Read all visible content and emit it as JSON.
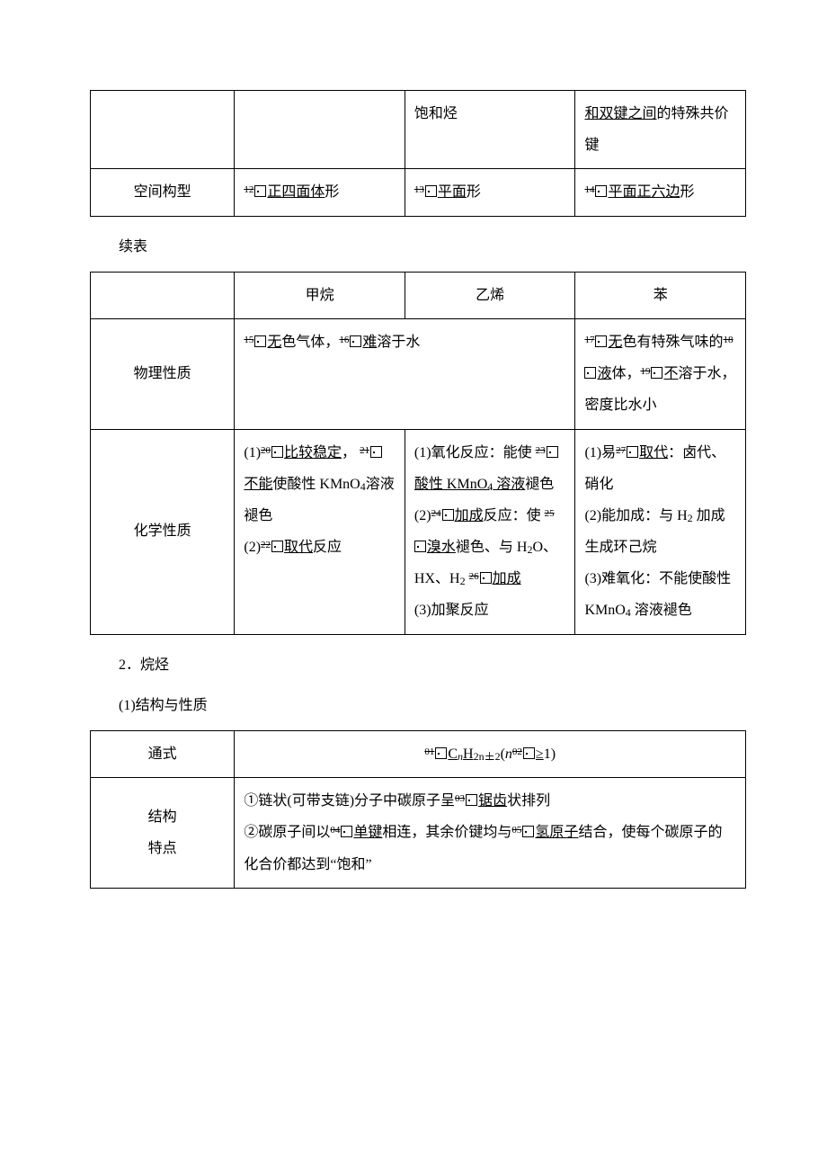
{
  "colors": {
    "text": "#000000",
    "bg": "#ffffff",
    "border": "#000000"
  },
  "fonts": {
    "body_family": "SimSun",
    "body_size_pt": 12,
    "sup_size_pt": 8,
    "sub_size_pt": 9,
    "line_height": 2.2
  },
  "table1": {
    "row_a": {
      "col2": "饱和烃",
      "col3_pre": "和双键之间",
      "col3_post": "的特殊共价键"
    },
    "row_b": {
      "label": "空间构型",
      "c1_num": "12",
      "c1_u": "正四面体",
      "c1_tail": "形",
      "c2_num": "13",
      "c2_u": "平面",
      "c2_tail": "形",
      "c3_num": "14",
      "c3_u": "平面正六边",
      "c3_tail": "形"
    }
  },
  "continued": "续表",
  "table2": {
    "header": {
      "c1": "甲烷",
      "c2": "乙烯",
      "c3": "苯"
    },
    "phys": {
      "label": "物理性质",
      "left_n1": "15",
      "left_u1": "无",
      "left_mid1": "色气体，",
      "left_n2": "16",
      "left_u2": "难",
      "left_tail": "溶于水",
      "right_n1": "17",
      "right_u1": "无",
      "right_txt1": "色有特殊气味的",
      "right_n2": "18",
      "right_u2": "液",
      "right_txt2": "体，",
      "right_n3": "19",
      "right_u3": "不",
      "right_txt3": "溶于水，密度比水小"
    },
    "chem": {
      "label": "化学性质",
      "c1": {
        "l1a": "(1)",
        "n1": "20",
        "u1": "比较稳定",
        "l1b": "，",
        "n2": "21",
        "u2": "不能",
        "l2": "使酸性 KMnO",
        "sub": "4",
        "l2b": "溶液褪色",
        "l3a": "(2)",
        "n3": "22",
        "u3": "取代",
        "l3b": "反应"
      },
      "c2": {
        "l1": "(1)氧化反应：能使",
        "n1": "23",
        "u1": "酸性 KMnO",
        "sub1": "4",
        "u1b": " 溶液",
        "l1b": "褪色",
        "l2a": "(2)",
        "n2": "24",
        "u2": "加成",
        "l2b": "反应：使",
        "n3": "25",
        "u3": "溴水",
        "l3": "褪色、与 H",
        "sub2": "2",
        "l3b": "O、HX、H",
        "sub3": "2",
        "n4": "26",
        "u4": "加成",
        "l4": "(3)加聚反应"
      },
      "c3": {
        "l1a": "(1)易",
        "n1": "27",
        "u1": "取代",
        "l1b": "：卤代、硝化",
        "l2": "(2)能加成：与 H",
        "sub1": "2",
        "l2b": " 加成生成环己烷",
        "l3": "(3)难氧化：不能使酸性 KMnO",
        "sub2": "4",
        "l3b": " 溶液褪色"
      }
    }
  },
  "section2_title": "2．烷烃",
  "section2_sub": "(1)结构与性质",
  "table3": {
    "r1": {
      "label": "通式",
      "n1": "01",
      "u1": "C",
      "sub_n": "n",
      "u1b": "H",
      "sub_2n2": "2n＋2",
      "mid": "(",
      "var_n": "n",
      "n2": "02",
      "u2": "≥",
      "tail": "1)"
    },
    "r2": {
      "label_l1": "结构",
      "label_l2": "特点",
      "l1a": "①链状(可带支链)分子中碳原子呈",
      "n1": "03",
      "u1": "锯齿",
      "l1b": "状排列",
      "l2a": "②碳原子间以",
      "n2": "04",
      "u2": "单键",
      "l2b": "相连，其余价键均与",
      "n3": "05",
      "u3": "氢原子",
      "l2c": "结合，使每个碳原子的化合价都达到“饱和”"
    }
  }
}
